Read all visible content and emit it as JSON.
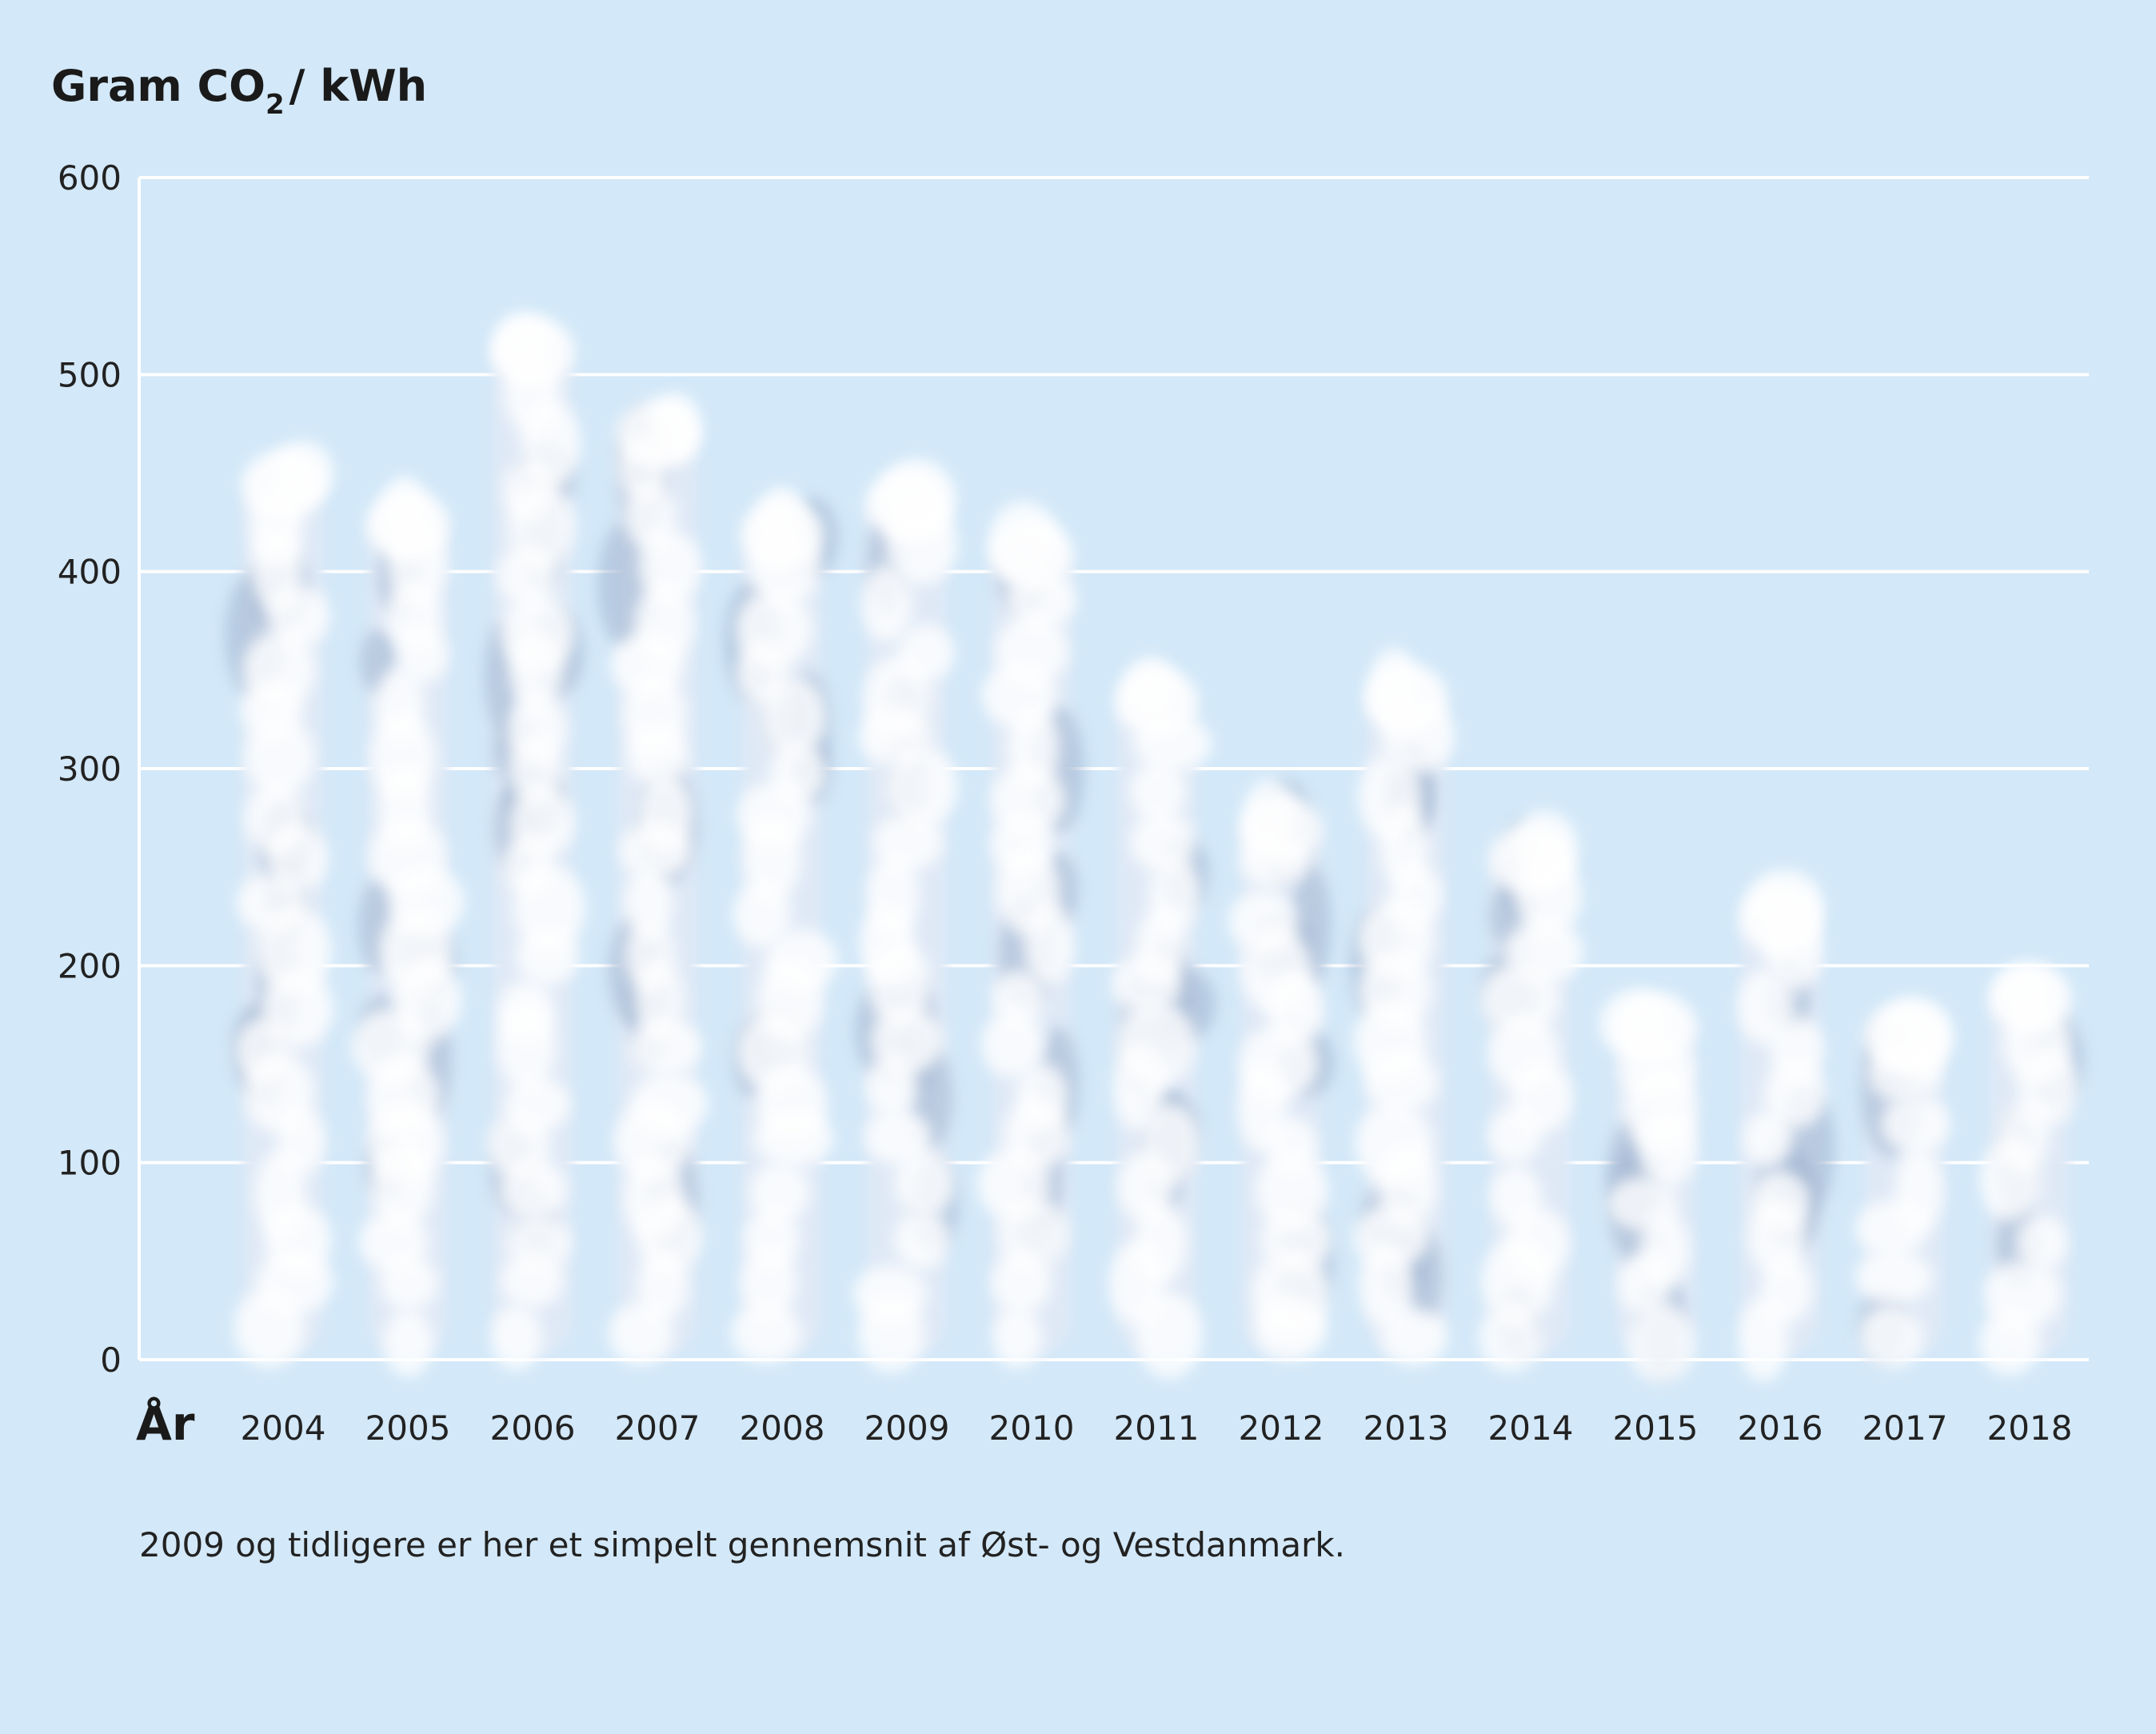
{
  "chart_data": {
    "type": "bar",
    "title_main": "Gram CO",
    "title_sub": "2",
    "title_unit": "/ kWh",
    "ylabel": "Gram CO2 / kWh",
    "xlabel": "År",
    "categories": [
      "2004",
      "2005",
      "2006",
      "2007",
      "2008",
      "2009",
      "2010",
      "2011",
      "2012",
      "2013",
      "2014",
      "2015",
      "2016",
      "2017",
      "2018"
    ],
    "values": [
      460,
      440,
      528,
      486,
      435,
      450,
      425,
      350,
      285,
      352,
      270,
      185,
      240,
      180,
      200
    ],
    "ylim": [
      0,
      600
    ],
    "yticks": [
      0,
      100,
      200,
      300,
      400,
      500,
      600
    ],
    "grid": true,
    "note": "2009 og tidligere er her et simpelt gennemsnit af Øst- og Vestdanmark."
  },
  "colors": {
    "background": "#d3e8f8",
    "grid": "#ffffff",
    "bar_light": "#ffffff",
    "bar_mid": "#dfe9f6",
    "bar_shadow": "#9eb2cf"
  }
}
